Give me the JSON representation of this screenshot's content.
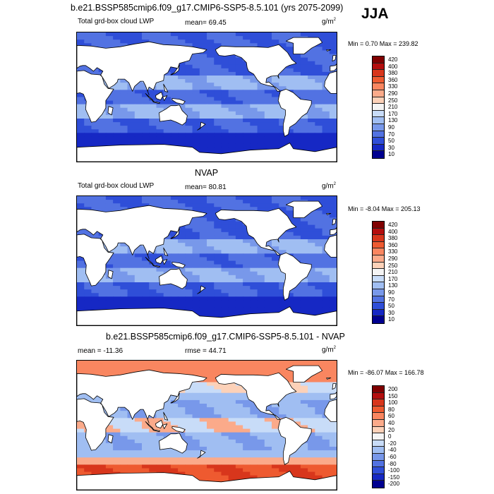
{
  "season": "JJA",
  "panels": [
    {
      "title": "b.e21.BSSP585cmip6.f09_g17.CMIP6-SSP5-8.5.101 (yrs 2075-2099)",
      "left_label": "Total grd-box cloud LWP",
      "center_label": "mean=  69.45",
      "units": "g/m",
      "units_exp": "2",
      "min_max": "Min =   0.70 Max = 239.82",
      "colorbar_levels": [
        "420",
        "400",
        "380",
        "360",
        "330",
        "290",
        "250",
        "210",
        "170",
        "130",
        "90",
        "70",
        "50",
        "30",
        "10"
      ],
      "colorbar_colors": [
        "#800000",
        "#b40e0e",
        "#d8361c",
        "#ee5a30",
        "#f98660",
        "#fbaa8a",
        "#fcd1b8",
        "#f4f4f4",
        "#c8dcf8",
        "#a0bef2",
        "#7898ea",
        "#5272e2",
        "#2f4ed8",
        "#1628c4",
        "#000090"
      ],
      "map_palette": "lwp"
    },
    {
      "title": "NVAP",
      "left_label": "Total grd-box cloud LWP",
      "center_label": "mean=  80.81",
      "units": "g/m",
      "units_exp": "2",
      "min_max": "Min =  -8.04 Max = 205.13",
      "colorbar_levels": [
        "420",
        "400",
        "380",
        "360",
        "330",
        "290",
        "250",
        "210",
        "170",
        "130",
        "90",
        "70",
        "50",
        "30",
        "10"
      ],
      "colorbar_colors": [
        "#800000",
        "#b40e0e",
        "#d8361c",
        "#ee5a30",
        "#f98660",
        "#fbaa8a",
        "#fcd1b8",
        "#f4f4f4",
        "#c8dcf8",
        "#a0bef2",
        "#7898ea",
        "#5272e2",
        "#2f4ed8",
        "#1628c4",
        "#000090"
      ],
      "map_palette": "lwp"
    },
    {
      "title": "b.e21.BSSP585cmip6.f09_g17.CMIP6-SSP5-8.5.101 - NVAP",
      "left_label": "mean = -11.36",
      "center_label": "rmse =  44.71",
      "units": "g/m",
      "units_exp": "2",
      "min_max": "Min = -86.07 Max = 166.78",
      "colorbar_levels": [
        "200",
        "150",
        "100",
        "80",
        "60",
        "40",
        "20",
        "0",
        "-20",
        "-40",
        "-60",
        "-80",
        "-100",
        "-150",
        "-200"
      ],
      "colorbar_colors": [
        "#800000",
        "#b40e0e",
        "#d8361c",
        "#ee5a30",
        "#f98660",
        "#fbaa8a",
        "#fcd1b8",
        "#f4f4f4",
        "#c8dcf8",
        "#a0bef2",
        "#7898ea",
        "#5272e2",
        "#2f4ed8",
        "#1628c4",
        "#000090"
      ],
      "map_palette": "diff"
    }
  ]
}
